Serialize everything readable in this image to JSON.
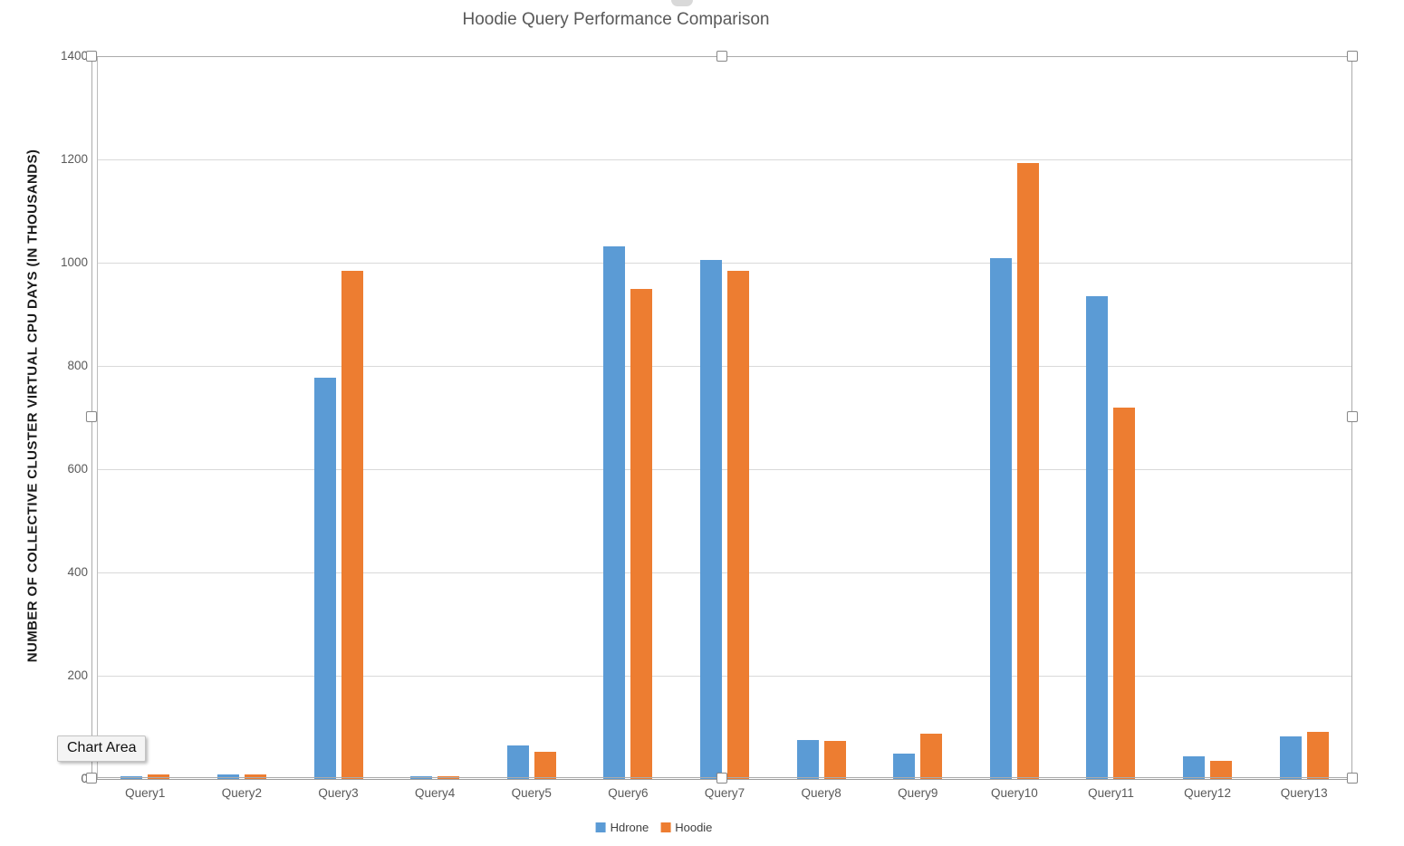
{
  "title": "Hoodie Query Performance Comparison",
  "tooltip": {
    "label": "Chart Area"
  },
  "legend": {
    "items": [
      {
        "label": "Hdrone",
        "color": "#5B9BD5"
      },
      {
        "label": "Hoodie",
        "color": "#ED7D31"
      }
    ]
  },
  "colors": {
    "series_hdrone": "#5B9BD5",
    "series_hoodie": "#ED7D31",
    "gridline": "#D9D9D9",
    "title_text": "#595959",
    "tick_text": "#595959",
    "selection_border": "#ABABAB"
  },
  "chart_data": {
    "type": "bar",
    "title": "Hoodie Query Performance Comparison",
    "xlabel": "",
    "ylabel": "NUMBER OF COLLECTIVE CLUSTER VIRTUAL CPU DAYS (IN THOUSANDS)",
    "categories": [
      "Query1",
      "Query2",
      "Query3",
      "Query4",
      "Query5",
      "Query6",
      "Query7",
      "Query8",
      "Query9",
      "Query10",
      "Query11",
      "Query12",
      "Query13"
    ],
    "series": [
      {
        "name": "Hdrone",
        "color": "#5B9BD5",
        "values": [
          5,
          9,
          777,
          6,
          65,
          1031,
          1005,
          75,
          49,
          1008,
          935,
          44,
          82
        ]
      },
      {
        "name": "Hoodie",
        "color": "#ED7D31",
        "values": [
          8,
          9,
          985,
          5,
          53,
          950,
          985,
          74,
          88,
          1193,
          719,
          35,
          91
        ]
      }
    ],
    "ylim": [
      0,
      1400
    ],
    "ytick_step": 200,
    "yticks": [
      0,
      200,
      400,
      600,
      800,
      1000,
      1200,
      1400
    ],
    "grid": true,
    "legend_position": "bottom"
  }
}
